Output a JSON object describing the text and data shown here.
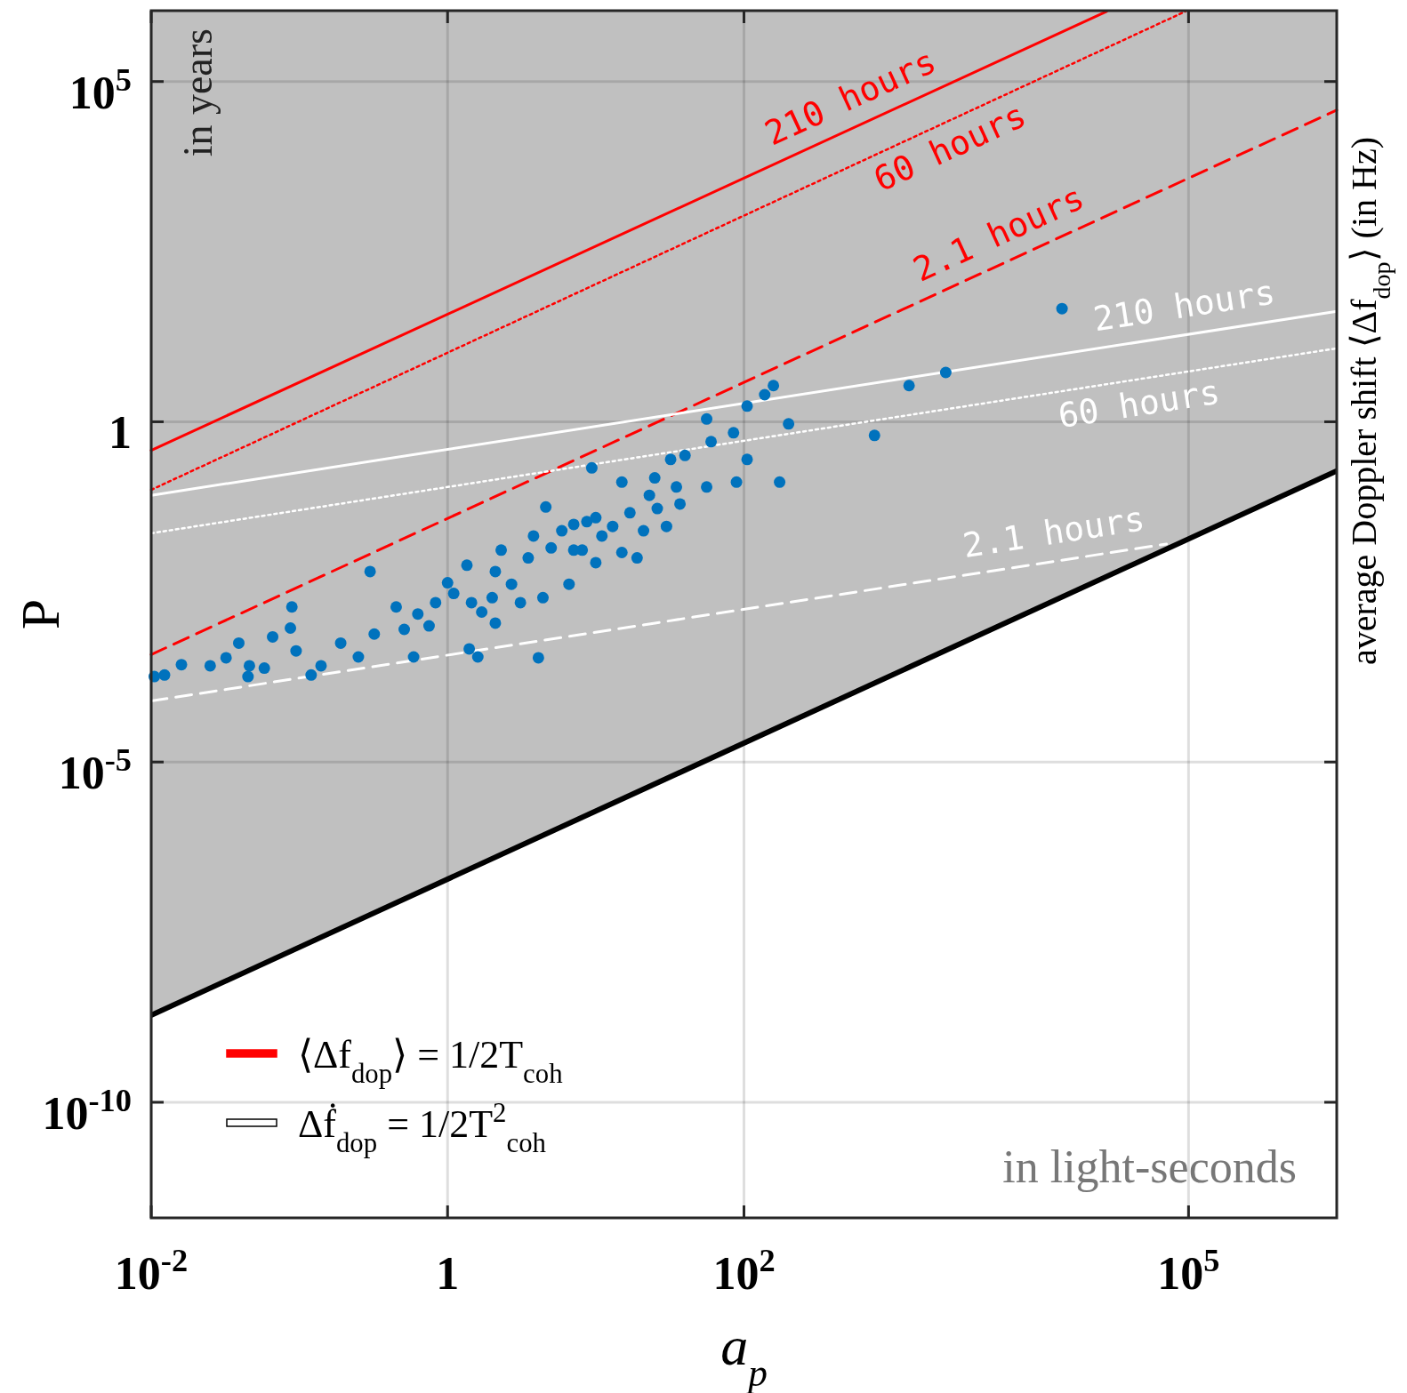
{
  "chart_data": {
    "type": "scatter",
    "xlabel": "a$_{p}$",
    "ylabel": "P",
    "y2label": "average Doppler shift ⟨Δf$_{dop}$⟩ (in Hz)",
    "log": "xy",
    "grid": true,
    "legend": "bottom left",
    "xlim": [
      0.01,
      1000000
    ],
    "ylim": [
      2e-12,
      1100000
    ],
    "xticks": [
      {
        "value": 0.01,
        "label": "10$^{-2}$"
      },
      1,
      {
        "value": 100,
        "label": "10$^{2}$"
      },
      {
        "value": 100000,
        "label": "10$^{5}$"
      }
    ],
    "yticks": [
      {
        "value": 1e-10,
        "label": "10$^{-10}$"
      },
      {
        "value": 1e-05,
        "label": "10$^{-5}$"
      },
      1,
      {
        "value": 100000,
        "label": "10$^{5}$"
      }
    ],
    "series": [
      {
        "type": "area",
        "color": "#ffffff",
        "x": [
          0.01,
          1000000
        ],
        "values": [
          1.9e-09,
          0.19
        ]
      },
      {
        "type": "line",
        "name": "⟨Δf$_{dop}$⟩ = 1/2T$_{coh}$",
        "color": "#ff0000",
        "x": [
          0.01,
          28000
        ],
        "values": [
          0.38,
          1070000
        ],
        "line_style": "solid"
      },
      {
        "type": "line",
        "color": "#ff0000",
        "x": [
          0.01,
          95000
        ],
        "values": [
          0.1,
          1070000
        ],
        "line_style": "dotted"
      },
      {
        "type": "line",
        "color": "#ff0000",
        "x": [
          0.01,
          1000000
        ],
        "values": [
          0.00038,
          38000
        ],
        "line_style": "dashed"
      },
      {
        "type": "line",
        "name": "Δḟ$_{dop}$ = 1/2T$^{2}$$_{coh}$",
        "color": "#ffffff",
        "x": [
          0.01,
          1000000
        ],
        "values": [
          0.083,
          42
        ],
        "line_style": "solid"
      },
      {
        "type": "line",
        "color": "#ffffff",
        "x": [
          0.01,
          1000000
        ],
        "values": [
          0.023,
          12
        ],
        "line_style": "dotted"
      },
      {
        "type": "line",
        "color": "#ffffff",
        "x": [
          0.01,
          71000
        ],
        "values": [
          7.9e-05,
          0.016
        ],
        "line_style": "dashed"
      },
      {
        "type": "scatter",
        "color": "#0072bd",
        "marker": "circle",
        "x": [
          0.0105,
          0.0123,
          0.016,
          0.025,
          0.032,
          0.039,
          0.045,
          0.046,
          0.058,
          0.066,
          0.087,
          0.089,
          0.095,
          0.12,
          0.14,
          0.19,
          0.25,
          0.32,
          0.45,
          0.51,
          0.59,
          0.63,
          0.75,
          0.83,
          1.0,
          1.1,
          1.35,
          1.45,
          1.4,
          1.7,
          2.1,
          2.3,
          2.7,
          3.1,
          3.5,
          3.8,
          4.1,
          4.4,
          4.6,
          5.0,
          5.9,
          6.6,
          7.1,
          8.1,
          9.4,
          10,
          11,
          13,
          15,
          15,
          17,
          21,
          23,
          25,
          26,
          30,
          32,
          35,
          37,
          40,
          56,
          56,
          60,
          85,
          89,
          105,
          105,
          138,
          158,
          174,
          200,
          760,
          1300,
          2300,
          14000,
          19,
          10,
          2.1,
          0.3,
          1.6,
          2.0,
          7.1,
          8.7
        ],
        "values": [
          0.00018,
          0.00019,
          0.00027,
          0.00026,
          0.00034,
          0.00056,
          0.00018,
          0.00026,
          0.00024,
          0.00069,
          0.00093,
          0.0019,
          0.00043,
          0.00019,
          0.00026,
          0.00056,
          0.00035,
          0.00076,
          0.0019,
          0.00089,
          0.00035,
          0.0015,
          0.001,
          0.0022,
          0.0043,
          0.003,
          0.0078,
          0.0022,
          0.00046,
          0.0016,
          0.0011,
          0.013,
          0.0041,
          0.0022,
          0.01,
          0.021,
          0.00034,
          0.0026,
          0.056,
          0.014,
          0.025,
          0.0041,
          0.031,
          0.013,
          0.21,
          0.039,
          0.021,
          0.029,
          0.13,
          0.012,
          0.046,
          0.025,
          0.083,
          0.15,
          0.053,
          0.029,
          0.28,
          0.11,
          0.062,
          0.32,
          1.1,
          0.11,
          0.51,
          0.69,
          0.13,
          1.7,
          0.28,
          2.5,
          3.4,
          0.13,
          0.93,
          0.63,
          3.4,
          5.3,
          46,
          0.01,
          0.0085,
          0.0063,
          0.0063,
          0.00035,
          0.0026,
          0.013,
          0.034
        ]
      }
    ],
    "annotations": [
      "in years",
      "in light-seconds",
      "210 hours",
      "60 hours",
      "2.1 hours",
      "210 hours",
      "60 hours",
      "2.1 hours"
    ]
  }
}
